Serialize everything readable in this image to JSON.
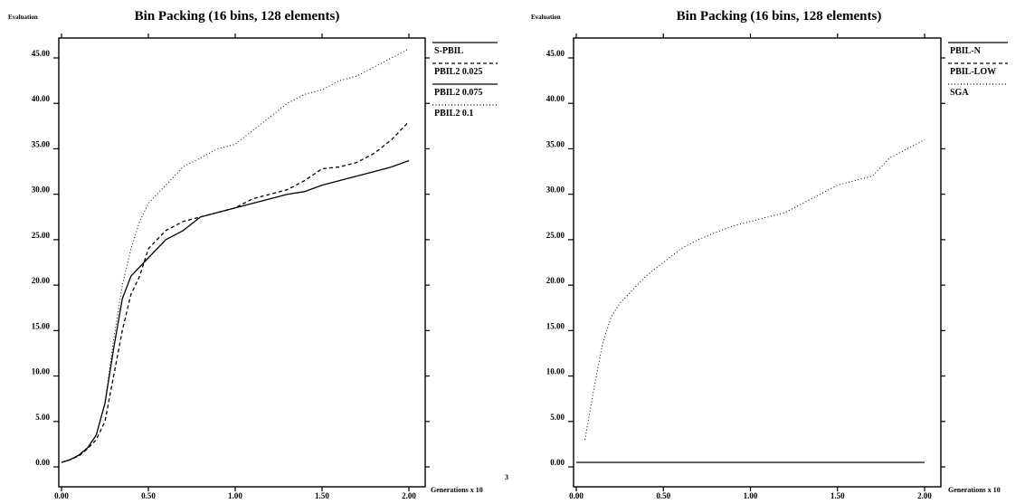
{
  "chart_data": [
    {
      "type": "line",
      "title": "Bin Packing (16 bins, 128 elements)",
      "ylabel": "Evaluation",
      "xlabel": "Generations x 10",
      "xlabel_exponent": "3",
      "xlim": [
        0,
        2.0
      ],
      "ylim": [
        0,
        46
      ],
      "xticks": [
        "0.00",
        "0.50",
        "1.00",
        "1.50",
        "2.00"
      ],
      "yticks": [
        "0.00",
        "5.00",
        "10.00",
        "15.00",
        "20.00",
        "25.00",
        "30.00",
        "35.00",
        "40.00",
        "45.00"
      ],
      "grid": false,
      "legend_position": "right",
      "series": [
        {
          "name": "S-PBIL",
          "style": "solid",
          "x": [
            0,
            0.05,
            0.1,
            0.15,
            0.2,
            0.25,
            0.3,
            0.35,
            0.4,
            0.45,
            0.5,
            0.6,
            0.7,
            0.8,
            0.9,
            1.0,
            1.1,
            1.2,
            1.3,
            1.4,
            1.5,
            1.6,
            1.7,
            1.8,
            1.9,
            2.0
          ],
          "y": [
            0.5,
            0.8,
            1.3,
            2.1,
            3.5,
            7,
            13,
            18.5,
            21,
            22,
            23,
            25,
            26,
            27.5,
            28,
            28.5,
            29,
            29.5,
            30,
            30.3,
            31,
            31.5,
            32,
            32.5,
            33,
            33.7
          ]
        },
        {
          "name": "PBIL2 0.025",
          "style": "dashed",
          "x": [
            0,
            0.05,
            0.1,
            0.15,
            0.2,
            0.25,
            0.3,
            0.35,
            0.4,
            0.45,
            0.5,
            0.6,
            0.7,
            0.8,
            0.9,
            1.0,
            1.1,
            1.2,
            1.3,
            1.4,
            1.5,
            1.6,
            1.7,
            1.8,
            1.9,
            2.0
          ],
          "y": [
            0.5,
            0.8,
            1.2,
            2,
            3,
            5,
            10,
            15,
            19,
            21,
            24,
            26,
            27,
            27.5,
            28,
            28.5,
            29.5,
            30,
            30.5,
            31.5,
            32.8,
            33,
            33.5,
            34.5,
            36,
            38
          ]
        },
        {
          "name": "PBIL2 0.075",
          "style": "solid",
          "values": []
        },
        {
          "name": "PBIL2 0.1",
          "style": "dotted",
          "x": [
            0,
            0.05,
            0.1,
            0.15,
            0.2,
            0.25,
            0.3,
            0.35,
            0.4,
            0.45,
            0.5,
            0.6,
            0.7,
            0.8,
            0.9,
            1.0,
            1.1,
            1.2,
            1.3,
            1.4,
            1.5,
            1.6,
            1.7,
            1.8,
            1.9,
            2.0
          ],
          "y": [
            0.5,
            0.8,
            1.2,
            2,
            3.5,
            7,
            14,
            20,
            24,
            27,
            29,
            31,
            33,
            34,
            35,
            35.5,
            37,
            38.5,
            40,
            41,
            41.5,
            42.5,
            43,
            44,
            45,
            46
          ]
        }
      ]
    },
    {
      "type": "line",
      "title": "Bin Packing (16 bins, 128 elements)",
      "ylabel": "Evaluation",
      "xlabel": "Generations x 10",
      "xlim": [
        0,
        2.0
      ],
      "ylim": [
        0,
        46
      ],
      "xticks": [
        "0.00",
        "0.50",
        "1.00",
        "1.50",
        "2.00"
      ],
      "yticks": [
        "0.00",
        "5.00",
        "10.00",
        "15.00",
        "20.00",
        "25.00",
        "30.00",
        "35.00",
        "40.00",
        "45.00"
      ],
      "grid": false,
      "legend_position": "right",
      "series": [
        {
          "name": "PBIL-N",
          "style": "solid",
          "x": [
            0,
            0.5,
            1.0,
            1.5,
            2.0
          ],
          "y": [
            0.5,
            0.5,
            0.5,
            0.5,
            0.5
          ]
        },
        {
          "name": "PBIL-LOW",
          "style": "dashed",
          "values": []
        },
        {
          "name": "SGA",
          "style": "dotted",
          "x": [
            0.05,
            0.1,
            0.15,
            0.2,
            0.25,
            0.3,
            0.35,
            0.4,
            0.5,
            0.6,
            0.7,
            0.8,
            0.9,
            1.0,
            1.1,
            1.2,
            1.3,
            1.4,
            1.5,
            1.6,
            1.7,
            1.8,
            1.9,
            2.0
          ],
          "y": [
            3,
            8.5,
            13.5,
            16.5,
            18,
            19,
            20,
            21,
            22.5,
            24,
            25,
            25.8,
            26.5,
            27,
            27.5,
            28,
            29,
            30,
            31,
            31.5,
            32,
            34,
            35,
            36
          ]
        }
      ]
    }
  ]
}
